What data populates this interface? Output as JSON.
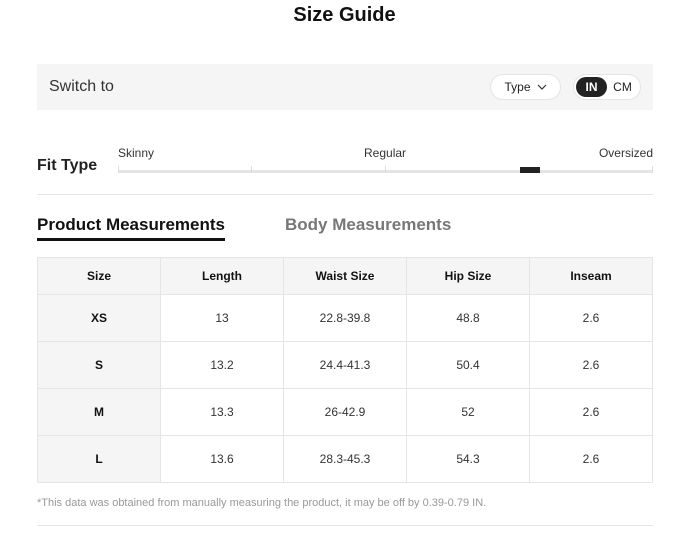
{
  "title": "Size Guide",
  "switch": {
    "label": "Switch to",
    "type_label": "Type",
    "units": [
      "IN",
      "CM"
    ],
    "selected_unit": "IN"
  },
  "fit": {
    "label": "Fit Type",
    "scale": [
      "Skinny",
      "Regular",
      "Oversized"
    ],
    "value": 0.77
  },
  "tabs": [
    {
      "label": "Product Measurements",
      "active": true
    },
    {
      "label": "Body Measurements",
      "active": false
    }
  ],
  "table": {
    "headers": [
      "Size",
      "Length",
      "Waist Size",
      "Hip Size",
      "Inseam"
    ],
    "rows": [
      [
        "XS",
        "13",
        "22.8-39.8",
        "48.8",
        "2.6"
      ],
      [
        "S",
        "13.2",
        "24.4-41.3",
        "50.4",
        "2.6"
      ],
      [
        "M",
        "13.3",
        "26-42.9",
        "52",
        "2.6"
      ],
      [
        "L",
        "13.6",
        "28.3-45.3",
        "54.3",
        "2.6"
      ]
    ]
  },
  "note": "*This data was obtained from manually measuring the product, it may be off by 0.39-0.79 IN."
}
